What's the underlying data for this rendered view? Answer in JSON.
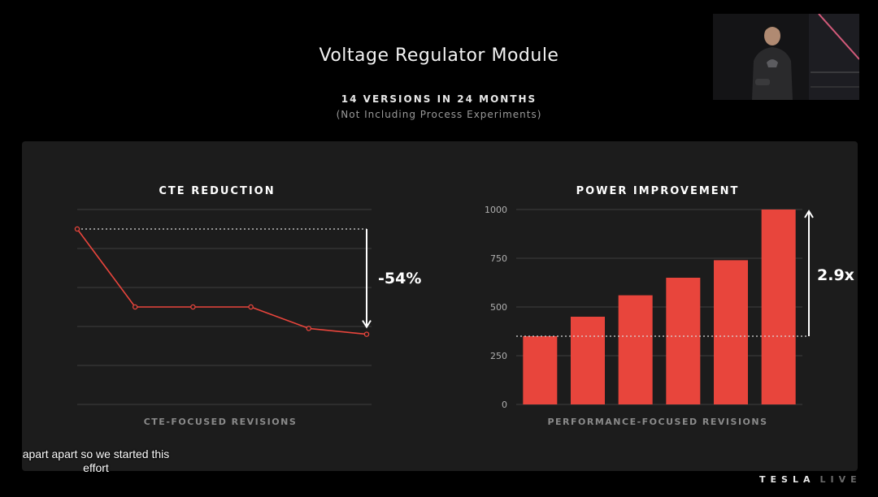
{
  "slide": {
    "title": "Voltage Regulator Module",
    "subtitle": "14 VERSIONS IN 24 MONTHS",
    "note": "(Not Including Process Experiments)"
  },
  "caption": {
    "line1": "apart apart so we started this",
    "line2": "effort"
  },
  "branding": {
    "left": "TESLA",
    "right": "LIVE"
  },
  "colors": {
    "background": "#000000",
    "panel": "#1c1c1c",
    "accent": "#e8453c",
    "grid": "#3e3e3e",
    "axis_label": "#8a8a8a"
  },
  "chart_data": [
    {
      "type": "line",
      "title": "CTE REDUCTION",
      "xlabel": "CTE-FOCUSED REVISIONS",
      "ylabel": "",
      "y_ticks_shown": false,
      "grid": true,
      "x": [
        1,
        2,
        3,
        4,
        5,
        6
      ],
      "values": [
        100,
        60,
        60,
        60,
        49,
        46
      ],
      "ylim": [
        10,
        110
      ],
      "baseline": 100,
      "annotation": "-54%"
    },
    {
      "type": "bar",
      "title": "POWER IMPROVEMENT",
      "xlabel": "PERFORMANCE-FOCUSED REVISIONS",
      "ylabel": "",
      "categories": [
        "1",
        "2",
        "3",
        "4",
        "5",
        "6"
      ],
      "category_labels_shown": false,
      "values": [
        350,
        450,
        560,
        650,
        740,
        1000
      ],
      "ylim": [
        0,
        1000
      ],
      "yticks": [
        0,
        250,
        500,
        750,
        1000
      ],
      "grid": true,
      "baseline": 350,
      "annotation": "2.9x"
    }
  ]
}
